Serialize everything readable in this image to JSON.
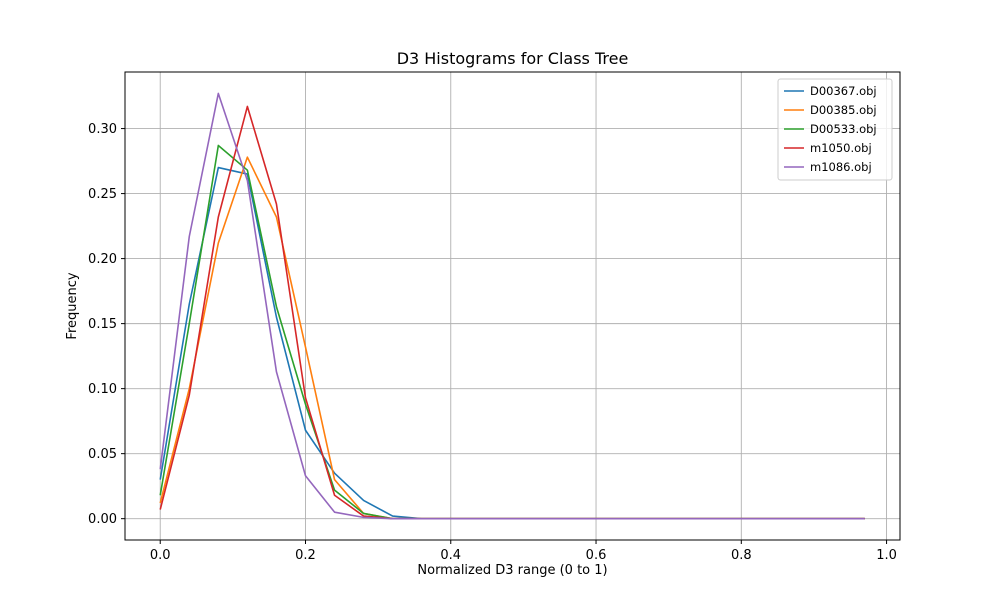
{
  "chart_data": {
    "type": "line",
    "title": "D3 Histograms for Class Tree",
    "xlabel": "Normalized D3 range (0 to 1)",
    "ylabel": "Frequency",
    "xlim": [
      -0.0485,
      1.0185
    ],
    "ylim": [
      -0.0164,
      0.3435
    ],
    "grid": true,
    "legend_position": "top-right",
    "x_ticks": [
      {
        "value": 0.0,
        "label": "0.0"
      },
      {
        "value": 0.2,
        "label": "0.2"
      },
      {
        "value": 0.4,
        "label": "0.4"
      },
      {
        "value": 0.6,
        "label": "0.6"
      },
      {
        "value": 0.8,
        "label": "0.8"
      },
      {
        "value": 1.0,
        "label": "1.0"
      }
    ],
    "y_ticks": [
      {
        "value": 0.0,
        "label": "0.00"
      },
      {
        "value": 0.05,
        "label": "0.05"
      },
      {
        "value": 0.1,
        "label": "0.10"
      },
      {
        "value": 0.15,
        "label": "0.15"
      },
      {
        "value": 0.2,
        "label": "0.20"
      },
      {
        "value": 0.25,
        "label": "0.25"
      },
      {
        "value": 0.3,
        "label": "0.30"
      }
    ],
    "x": [
      0.0,
      0.04,
      0.08,
      0.12,
      0.16,
      0.2,
      0.24,
      0.28,
      0.32,
      0.36,
      0.4,
      0.44,
      0.48,
      0.52,
      0.56,
      0.6,
      0.64,
      0.68,
      0.72,
      0.76,
      0.8,
      0.84,
      0.88,
      0.92,
      0.97
    ],
    "series": [
      {
        "name": "D00367.obj",
        "color": "#1f77b4",
        "values": [
          0.03,
          0.165,
          0.27,
          0.265,
          0.155,
          0.068,
          0.035,
          0.014,
          0.002,
          0.0,
          0.0,
          0.0,
          0.0,
          0.0,
          0.0,
          0.0,
          0.0,
          0.0,
          0.0,
          0.0,
          0.0,
          0.0,
          0.0,
          0.0,
          0.0
        ]
      },
      {
        "name": "D00385.obj",
        "color": "#ff7f0e",
        "values": [
          0.012,
          0.1,
          0.212,
          0.278,
          0.232,
          0.132,
          0.03,
          0.004,
          0.0,
          0.0,
          0.0,
          0.0,
          0.0,
          0.0,
          0.0,
          0.0,
          0.0,
          0.0,
          0.0,
          0.0,
          0.0,
          0.0,
          0.0,
          0.0,
          0.0
        ]
      },
      {
        "name": "D00533.obj",
        "color": "#2ca02c",
        "values": [
          0.018,
          0.15,
          0.287,
          0.268,
          0.163,
          0.088,
          0.022,
          0.004,
          0.0,
          0.0,
          0.0,
          0.0,
          0.0,
          0.0,
          0.0,
          0.0,
          0.0,
          0.0,
          0.0,
          0.0,
          0.0,
          0.0,
          0.0,
          0.0,
          0.0
        ]
      },
      {
        "name": "m1050.obj",
        "color": "#d62728",
        "values": [
          0.007,
          0.095,
          0.232,
          0.317,
          0.242,
          0.093,
          0.018,
          0.002,
          0.0,
          0.0,
          0.0,
          0.0,
          0.0,
          0.0,
          0.0,
          0.0,
          0.0,
          0.0,
          0.0,
          0.0,
          0.0,
          0.0,
          0.0,
          0.0,
          0.0
        ]
      },
      {
        "name": "m1086.obj",
        "color": "#9467bd",
        "values": [
          0.038,
          0.217,
          0.327,
          0.26,
          0.113,
          0.033,
          0.005,
          0.001,
          0.0,
          0.0,
          0.0,
          0.0,
          0.0,
          0.0,
          0.0,
          0.0,
          0.0,
          0.0,
          0.0,
          0.0,
          0.0,
          0.0,
          0.0,
          0.0,
          0.0
        ]
      }
    ]
  }
}
